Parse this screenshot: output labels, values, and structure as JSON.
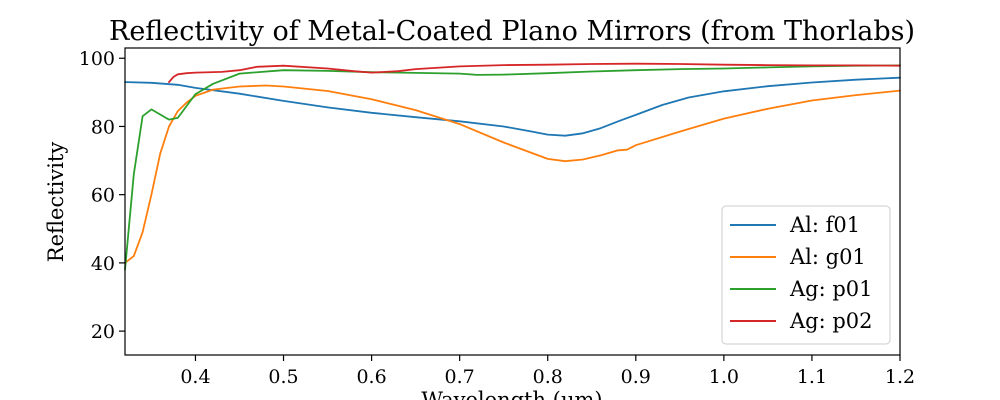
{
  "chart_data": {
    "type": "line",
    "title": "Reflectivity of Metal-Coated Plano Mirrors (from Thorlabs)",
    "xlabel": "Wavelength (μm)",
    "ylabel": "Reflectivity",
    "xlim": [
      0.32,
      1.2
    ],
    "ylim": [
      13,
      103
    ],
    "xticks": [
      0.4,
      0.5,
      0.6,
      0.7,
      0.8,
      0.9,
      1.0,
      1.1,
      1.2
    ],
    "yticks": [
      20,
      40,
      60,
      80,
      100
    ],
    "grid": false,
    "legend_position": "lower-right",
    "series": [
      {
        "name": "Al: f01",
        "color": "#1f77b4",
        "x": [
          0.32,
          0.35,
          0.38,
          0.4,
          0.45,
          0.5,
          0.55,
          0.6,
          0.65,
          0.7,
          0.75,
          0.78,
          0.8,
          0.82,
          0.84,
          0.86,
          0.88,
          0.9,
          0.93,
          0.96,
          1.0,
          1.05,
          1.1,
          1.15,
          1.2
        ],
        "y": [
          93.0,
          92.8,
          92.2,
          91.3,
          89.6,
          87.5,
          85.6,
          84.0,
          82.7,
          81.5,
          80.0,
          78.6,
          77.6,
          77.3,
          78.0,
          79.5,
          81.5,
          83.4,
          86.3,
          88.5,
          90.3,
          91.8,
          92.9,
          93.7,
          94.3
        ]
      },
      {
        "name": "Al: g01",
        "color": "#ff7f0e",
        "x": [
          0.32,
          0.33,
          0.34,
          0.35,
          0.36,
          0.37,
          0.38,
          0.39,
          0.4,
          0.42,
          0.45,
          0.48,
          0.5,
          0.55,
          0.6,
          0.65,
          0.7,
          0.75,
          0.8,
          0.82,
          0.84,
          0.86,
          0.88,
          0.89,
          0.9,
          0.95,
          1.0,
          1.05,
          1.1,
          1.15,
          1.2
        ],
        "y": [
          40.0,
          42.0,
          49.0,
          60.0,
          72.0,
          80.0,
          84.5,
          87.0,
          89.0,
          90.8,
          91.7,
          92.0,
          91.7,
          90.4,
          88.0,
          84.8,
          80.7,
          75.3,
          70.5,
          69.8,
          70.3,
          71.5,
          73.0,
          73.2,
          74.5,
          78.5,
          82.3,
          85.2,
          87.6,
          89.2,
          90.5
        ]
      },
      {
        "name": "Ag: p01",
        "color": "#2ca02c",
        "x": [
          0.32,
          0.33,
          0.34,
          0.35,
          0.36,
          0.37,
          0.38,
          0.39,
          0.4,
          0.42,
          0.45,
          0.5,
          0.55,
          0.6,
          0.65,
          0.7,
          0.72,
          0.75,
          0.8,
          0.85,
          0.9,
          0.95,
          1.0,
          1.05,
          1.1,
          1.15,
          1.2
        ],
        "y": [
          38.0,
          66.0,
          83.0,
          85.0,
          83.5,
          82.0,
          82.5,
          86.0,
          89.5,
          92.5,
          95.5,
          96.5,
          96.3,
          95.9,
          95.7,
          95.5,
          95.1,
          95.2,
          95.6,
          96.1,
          96.5,
          96.8,
          97.0,
          97.3,
          97.6,
          97.8,
          97.9
        ]
      },
      {
        "name": "Ag: p02",
        "color": "#d62728",
        "x": [
          0.37,
          0.375,
          0.38,
          0.39,
          0.4,
          0.43,
          0.45,
          0.47,
          0.5,
          0.55,
          0.58,
          0.6,
          0.63,
          0.65,
          0.7,
          0.75,
          0.8,
          0.85,
          0.9,
          0.95,
          1.0,
          1.05,
          1.1,
          1.15,
          1.2
        ],
        "y": [
          93.0,
          94.5,
          95.3,
          95.6,
          95.8,
          96.0,
          96.5,
          97.5,
          97.8,
          97.0,
          96.2,
          95.8,
          96.2,
          96.8,
          97.6,
          98.0,
          98.1,
          98.3,
          98.4,
          98.3,
          98.1,
          98.0,
          97.9,
          97.9,
          97.8
        ]
      }
    ]
  }
}
